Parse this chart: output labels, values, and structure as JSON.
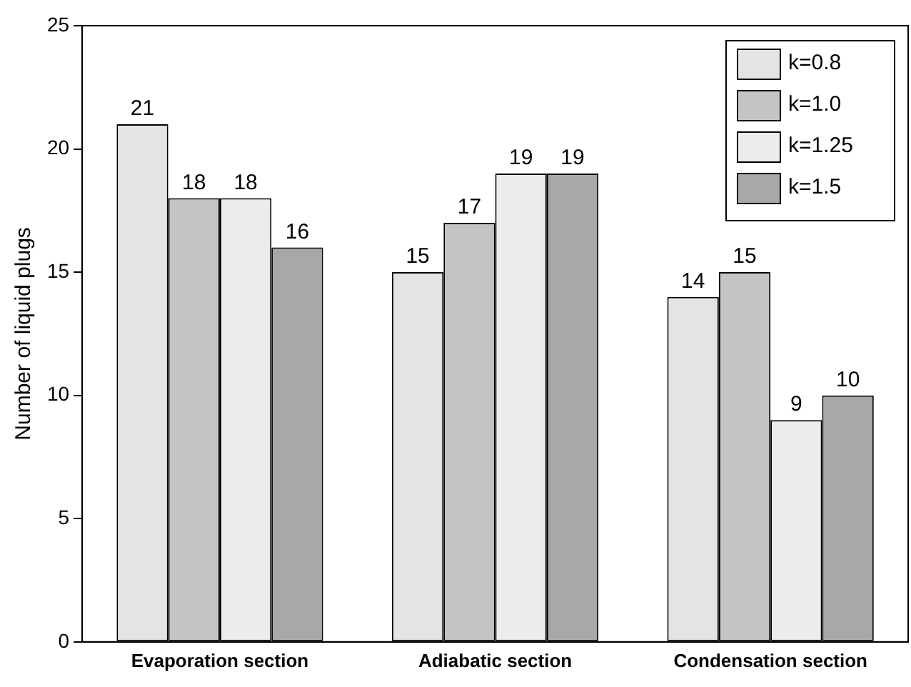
{
  "chart_data": {
    "type": "bar",
    "ylabel": "Number of liquid plugs",
    "categories": [
      "Evaporation section",
      "Adiabatic section",
      "Condensation section"
    ],
    "series": [
      {
        "name": "k=0.8",
        "color": "#e4e4e4",
        "values": [
          21,
          15,
          14
        ]
      },
      {
        "name": "k=1.0",
        "color": "#c4c4c4",
        "values": [
          18,
          17,
          15
        ]
      },
      {
        "name": "k=1.25",
        "color": "#ececec",
        "values": [
          18,
          19,
          9
        ]
      },
      {
        "name": "k=1.5",
        "color": "#a8a8a8",
        "values": [
          16,
          19,
          10
        ]
      }
    ],
    "ylim": [
      0,
      25
    ],
    "yticks": [
      0,
      5,
      10,
      15,
      20,
      25
    ],
    "data_labels": true,
    "grid": false,
    "legend": "top right"
  }
}
